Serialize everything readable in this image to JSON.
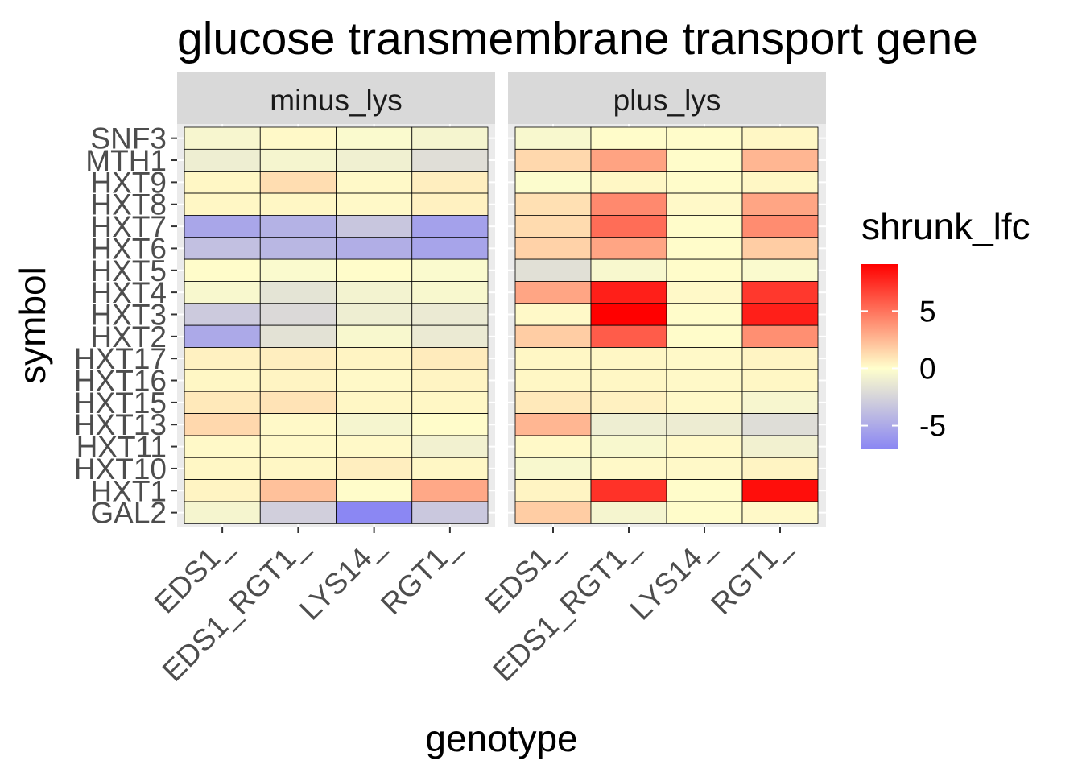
{
  "chart_data": {
    "type": "heatmap",
    "title": "glucose transmembrane transport gene",
    "xlabel": "genotype",
    "ylabel": "symbol",
    "facets": [
      "minus_lys",
      "plus_lys"
    ],
    "x": [
      "EDS1_",
      "EDS1_RGT1_",
      "LYS14_",
      "RGT1_"
    ],
    "y": [
      "SNF3",
      "MTH1",
      "HXT9",
      "HXT8",
      "HXT7",
      "HXT6",
      "HXT5",
      "HXT4",
      "HXT3",
      "HXT2",
      "HXT17",
      "HXT16",
      "HXT15",
      "HXT13",
      "HXT11",
      "HXT10",
      "HXT1",
      "GAL2"
    ],
    "values": {
      "minus_lys": [
        [
          -0.5,
          0.2,
          -0.3,
          -0.6
        ],
        [
          -1.0,
          -0.6,
          -0.9,
          -1.9
        ],
        [
          0.3,
          1.2,
          0.2,
          0.6
        ],
        [
          0.3,
          0.3,
          0.2,
          0.5
        ],
        [
          -5.2,
          -4.5,
          -3.3,
          -5.5
        ],
        [
          -3.7,
          -4.2,
          -4.7,
          -5.3
        ],
        [
          0.1,
          -0.3,
          0.1,
          -0.3
        ],
        [
          -0.4,
          -1.6,
          -0.7,
          -0.4
        ],
        [
          -3.1,
          -2.2,
          -1.0,
          -1.2
        ],
        [
          -5.0,
          -1.7,
          -0.4,
          -1.2
        ],
        [
          0.5,
          0.6,
          0.4,
          0.7
        ],
        [
          0.3,
          0.4,
          0.2,
          0.4
        ],
        [
          0.8,
          1.0,
          0.3,
          0.3
        ],
        [
          1.4,
          0.2,
          -0.6,
          0.1
        ],
        [
          0.2,
          0.2,
          0.2,
          -0.8
        ],
        [
          0.3,
          0.3,
          0.6,
          0.3
        ],
        [
          0.4,
          2.2,
          0.1,
          3.1
        ],
        [
          -0.6,
          -2.8,
          -7.0,
          -3.2
        ]
      ],
      "plus_lys": [
        [
          -0.4,
          0.1,
          0.1,
          0.3
        ],
        [
          1.4,
          3.3,
          0.1,
          2.6
        ],
        [
          -0.2,
          0.3,
          0.1,
          0.3
        ],
        [
          1.1,
          4.2,
          0.2,
          3.2
        ],
        [
          1.3,
          5.2,
          0.1,
          4.1
        ],
        [
          1.6,
          3.2,
          0.1,
          1.8
        ],
        [
          -1.8,
          -0.4,
          0.1,
          -0.3
        ],
        [
          3.2,
          8.0,
          0.2,
          7.1
        ],
        [
          0.2,
          9.1,
          0.1,
          8.0
        ],
        [
          1.8,
          5.8,
          0.1,
          4.0
        ],
        [
          0.3,
          0.3,
          0.2,
          0.4
        ],
        [
          0.3,
          0.3,
          0.2,
          0.3
        ],
        [
          0.8,
          0.5,
          0.2,
          -0.5
        ],
        [
          2.6,
          -1.0,
          -1.1,
          -2.0
        ],
        [
          0.2,
          -0.4,
          0.2,
          -0.8
        ],
        [
          -0.4,
          0.2,
          0.2,
          0.4
        ],
        [
          0.4,
          7.3,
          0.1,
          8.6
        ],
        [
          1.8,
          -0.6,
          0.1,
          0.2
        ]
      ]
    },
    "legend": {
      "title": "shrunk_lfc",
      "ticks": [
        5,
        0,
        -5
      ],
      "tick_labels": [
        "5",
        "0",
        "-5"
      ],
      "range": [
        -7.0,
        9.1
      ],
      "placement": "right"
    },
    "colors": {
      "low": "#8b87f3",
      "mid": "#ffffcc",
      "high": "#ff0000",
      "panel_bg": "#ebebeb",
      "strip_bg": "#d9d9d9",
      "grid": "#ffffff",
      "axis_text": "#4d4d4d",
      "tile_border": "#000000"
    }
  }
}
